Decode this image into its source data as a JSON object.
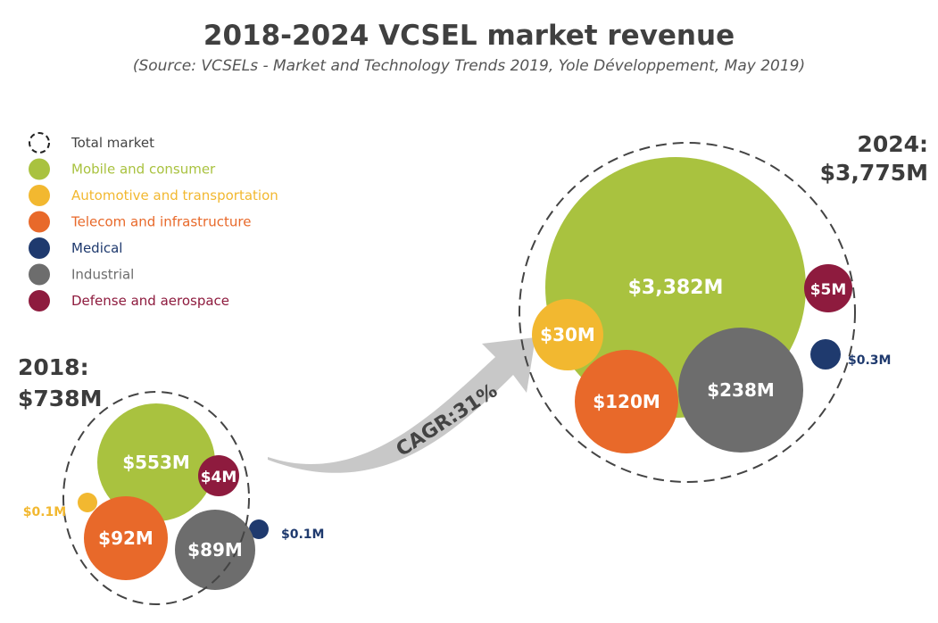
{
  "chart_data": {
    "type": "bubble",
    "title": "2018-2024 VCSEL market revenue",
    "subtitle": "(Source: VCSELs - Market and Technology Trends 2019, Yole Développement, May 2019)",
    "legend": {
      "placement": "top-left",
      "entries": [
        {
          "name": "Total market",
          "color": "#333333",
          "style": "dashed"
        },
        {
          "name": "Mobile and consumer",
          "color": "#a9c23f"
        },
        {
          "name": "Automotive and transportation",
          "color": "#f2b830"
        },
        {
          "name": "Telecom and infrastructure",
          "color": "#e8692a"
        },
        {
          "name": "Medical",
          "color": "#1f3a6e"
        },
        {
          "name": "Industrial",
          "color": "#6d6d6d"
        },
        {
          "name": "Defense and aerospace",
          "color": "#8e1b3e"
        }
      ]
    },
    "years": [
      {
        "year_label": "2018:",
        "total_label": "$738M",
        "total": 738,
        "segments": [
          {
            "name": "Mobile and consumer",
            "value": 553,
            "label": "$553M"
          },
          {
            "name": "Automotive and transportation",
            "value": 0.1,
            "label": "$0.1M"
          },
          {
            "name": "Telecom and infrastructure",
            "value": 92,
            "label": "$92M"
          },
          {
            "name": "Medical",
            "value": 0.1,
            "label": "$0.1M"
          },
          {
            "name": "Industrial",
            "value": 89,
            "label": "$89M"
          },
          {
            "name": "Defense and aerospace",
            "value": 4,
            "label": "$4M"
          }
        ]
      },
      {
        "year_label": "2024:",
        "total_label": "$3,775M",
        "total": 3775,
        "segments": [
          {
            "name": "Mobile and consumer",
            "value": 3382,
            "label": "$3,382M"
          },
          {
            "name": "Automotive and transportation",
            "value": 30,
            "label": "$30M"
          },
          {
            "name": "Telecom and infrastructure",
            "value": 120,
            "label": "$120M"
          },
          {
            "name": "Medical",
            "value": 0.3,
            "label": "$0.3M"
          },
          {
            "name": "Industrial",
            "value": 238,
            "label": "$238M"
          },
          {
            "name": "Defense and aerospace",
            "value": 5,
            "label": "$5M"
          }
        ]
      }
    ],
    "annotation": "CAGR:31%"
  }
}
